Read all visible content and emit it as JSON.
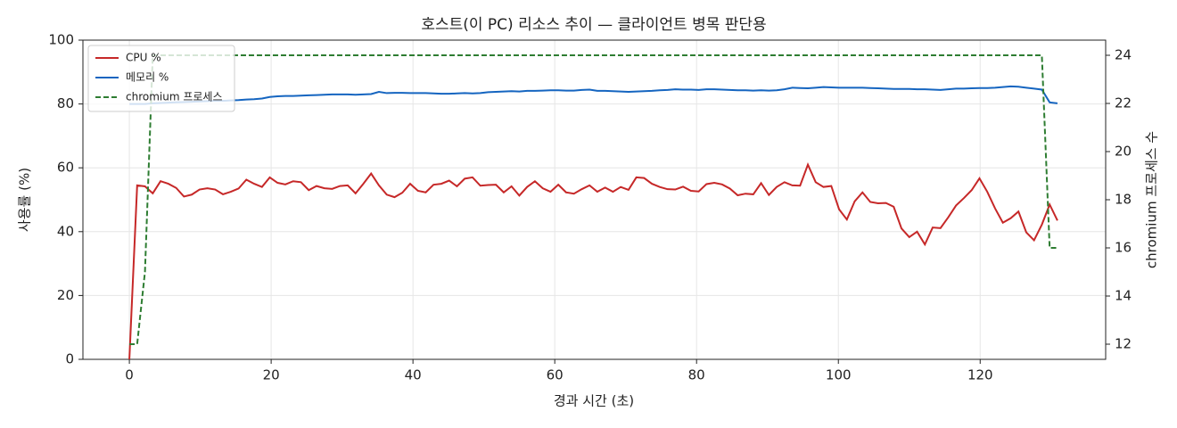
{
  "chart_data": {
    "type": "line",
    "title": "호스트(이 PC) 리소스 추이 — 클라이언트 병목 판단용",
    "xlabel": "경과 시간 (초)",
    "ylabel": "사용률 (%)",
    "y2label": "chromium 프로세스 수",
    "x": [
      0,
      1.1,
      2.2,
      3.3,
      4.4,
      5.5,
      6.6,
      7.7,
      8.8,
      9.9,
      11,
      12.1,
      13.2,
      14.3,
      15.4,
      16.5,
      17.6,
      18.7,
      19.8,
      20.9,
      22,
      23.1,
      24.2,
      25.3,
      26.4,
      27.5,
      28.6,
      29.7,
      30.8,
      31.9,
      33,
      34.1,
      35.2,
      36.3,
      37.4,
      38.5,
      39.6,
      40.7,
      41.8,
      42.9,
      44,
      45.1,
      46.2,
      47.3,
      48.4,
      49.5,
      50.6,
      51.7,
      52.8,
      53.9,
      55,
      56.1,
      57.2,
      58.3,
      59.4,
      60.5,
      61.6,
      62.7,
      63.8,
      64.9,
      66,
      67.1,
      68.2,
      69.3,
      70.4,
      71.5,
      72.6,
      73.7,
      74.8,
      75.9,
      77,
      78.1,
      79.2,
      80.3,
      81.4,
      82.5,
      83.6,
      84.7,
      85.8,
      86.9,
      88,
      89.1,
      90.2,
      91.3,
      92.4,
      93.5,
      94.6,
      95.7,
      96.8,
      97.9,
      99,
      100.1,
      101.2,
      102.3,
      103.4,
      104.5,
      105.6,
      106.7,
      107.8,
      108.9,
      110,
      111.1,
      112.2,
      113.3,
      114.4,
      115.5,
      116.6,
      117.7,
      118.8,
      119.9,
      121,
      122.1,
      123.2,
      124.3,
      125.4,
      126.5,
      127.6,
      128.7,
      129.8,
      130.9
    ],
    "series": [
      {
        "name": "CPU %",
        "color": "#c62828",
        "linestyle": "solid",
        "values": [
          0,
          54.5,
          54.2,
          52,
          55.8,
          55,
          53.7,
          51,
          51.6,
          53.2,
          53.6,
          53.2,
          51.7,
          52.5,
          53.5,
          56.3,
          55,
          54,
          57,
          55.3,
          54.8,
          55.8,
          55.5,
          53,
          54.3,
          53.6,
          53.4,
          54.3,
          54.5,
          52,
          55,
          58.2,
          54.5,
          51.6,
          50.8,
          52.2,
          55,
          52.8,
          52.3,
          54.7,
          55,
          56,
          54.2,
          56.6,
          57,
          54.4,
          54.6,
          54.7,
          52.3,
          54.2,
          51.3,
          54,
          55.8,
          53.6,
          52.5,
          54.7,
          52.3,
          51.9,
          53.3,
          54.5,
          52.5,
          53.8,
          52.5,
          54,
          53.1,
          57,
          56.8,
          55,
          54,
          53.3,
          53.2,
          54.1,
          52.8,
          52.6,
          54.9,
          55.3,
          54.8,
          53.5,
          51.4,
          51.9,
          51.7,
          55.2,
          51.5,
          54,
          55.5,
          54.5,
          54.4,
          61,
          55.5,
          54,
          54.3,
          47,
          43.8,
          49.5,
          52.3,
          49.3,
          48.9,
          49,
          47.8,
          41,
          38.3,
          40,
          36,
          41.3,
          41.1,
          44.5,
          48.2,
          50.5,
          53,
          56.7,
          52.5,
          47.3,
          42.8,
          44.2,
          46.3,
          39.8,
          37.3,
          42.2,
          48.5,
          43.5
        ]
      },
      {
        "name": "메모리 %",
        "color": "#1565c0",
        "linestyle": "solid",
        "values": [
          80,
          80,
          80,
          80.2,
          80.3,
          80.4,
          80.5,
          80.6,
          80.7,
          80.8,
          80.9,
          81,
          81,
          81.1,
          81.2,
          81.4,
          81.5,
          81.7,
          82.2,
          82.4,
          82.5,
          82.5,
          82.6,
          82.7,
          82.8,
          82.9,
          83,
          83,
          83,
          82.9,
          83,
          83.1,
          83.8,
          83.4,
          83.5,
          83.5,
          83.4,
          83.4,
          83.4,
          83.3,
          83.2,
          83.2,
          83.3,
          83.4,
          83.3,
          83.4,
          83.7,
          83.8,
          83.9,
          84,
          83.9,
          84.1,
          84.1,
          84.2,
          84.3,
          84.3,
          84.2,
          84.2,
          84.4,
          84.5,
          84.1,
          84.1,
          84,
          83.9,
          83.8,
          83.9,
          84,
          84.1,
          84.3,
          84.4,
          84.6,
          84.5,
          84.5,
          84.4,
          84.6,
          84.6,
          84.5,
          84.4,
          84.3,
          84.3,
          84.2,
          84.3,
          84.2,
          84.3,
          84.6,
          85.1,
          85,
          84.9,
          85.1,
          85.3,
          85.2,
          85.1,
          85.1,
          85.1,
          85.1,
          85,
          84.9,
          84.8,
          84.7,
          84.7,
          84.7,
          84.6,
          84.6,
          84.5,
          84.4,
          84.6,
          84.8,
          84.8,
          84.9,
          85,
          85,
          85.1,
          85.3,
          85.5,
          85.4,
          85.1,
          84.8,
          84.5,
          80.5,
          80.2
        ]
      },
      {
        "name": "chromium 프로세스",
        "color": "#2e7d32",
        "linestyle": "dashed",
        "axis": "y2",
        "values": [
          12,
          12,
          15,
          24,
          24,
          24,
          24,
          24,
          24,
          24,
          24,
          24,
          24,
          24,
          24,
          24,
          24,
          24,
          24,
          24,
          24,
          24,
          24,
          24,
          24,
          24,
          24,
          24,
          24,
          24,
          24,
          24,
          24,
          24,
          24,
          24,
          24,
          24,
          24,
          24,
          24,
          24,
          24,
          24,
          24,
          24,
          24,
          24,
          24,
          24,
          24,
          24,
          24,
          24,
          24,
          24,
          24,
          24,
          24,
          24,
          24,
          24,
          24,
          24,
          24,
          24,
          24,
          24,
          24,
          24,
          24,
          24,
          24,
          24,
          24,
          24,
          24,
          24,
          24,
          24,
          24,
          24,
          24,
          24,
          24,
          24,
          24,
          24,
          24,
          24,
          24,
          24,
          24,
          24,
          24,
          24,
          24,
          24,
          24,
          24,
          24,
          24,
          24,
          24,
          24,
          24,
          24,
          24,
          24,
          24,
          24,
          24,
          24,
          24,
          24,
          24,
          24,
          24,
          16,
          16
        ]
      }
    ],
    "xlim": [
      -6.55,
      137.7
    ],
    "xticks": [
      0,
      20,
      40,
      60,
      80,
      100,
      120
    ],
    "ylim": [
      0,
      100
    ],
    "yticks": [
      0,
      20,
      40,
      60,
      80,
      100
    ],
    "y2lim": [
      11.37,
      24.63
    ],
    "y2ticks": [
      12,
      14,
      16,
      18,
      20,
      22,
      24
    ],
    "grid": true,
    "legend": "upper left"
  }
}
